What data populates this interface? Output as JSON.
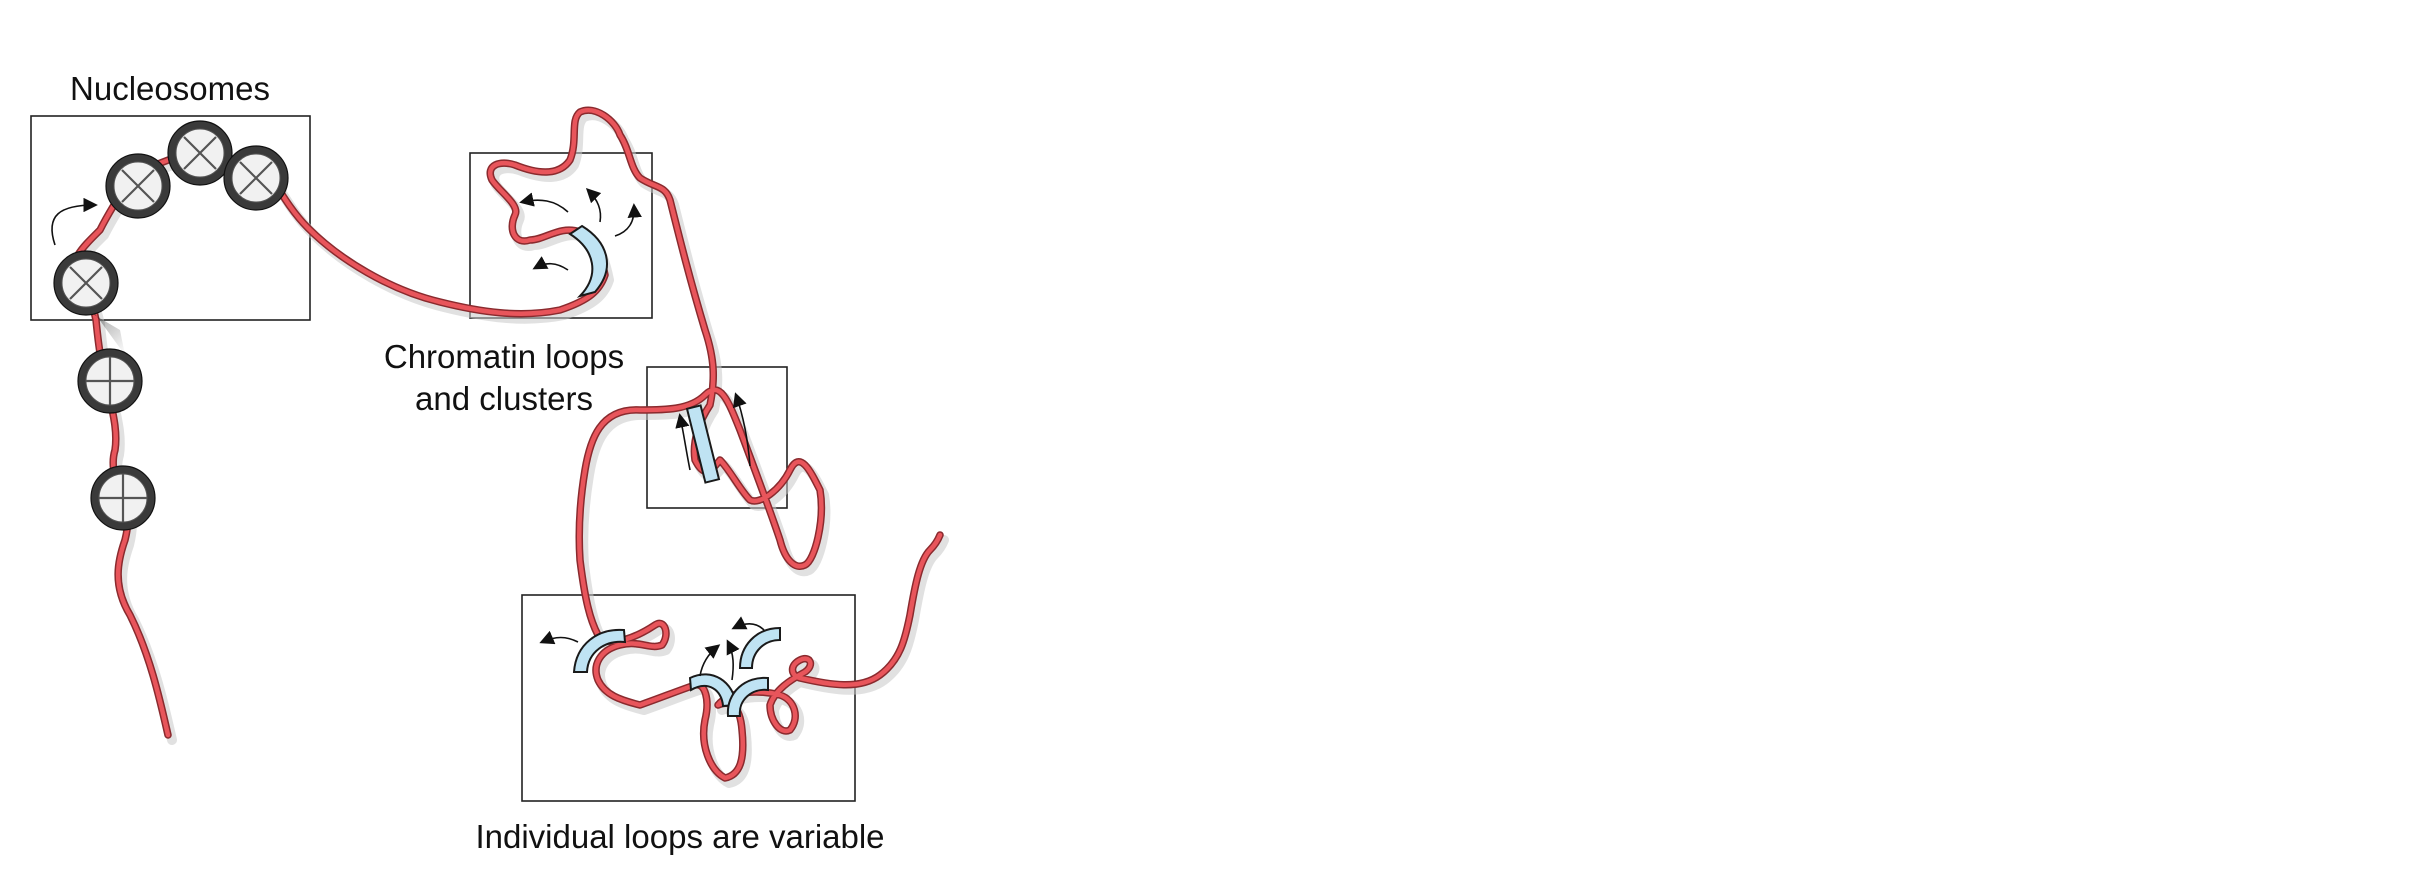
{
  "figure": {
    "labels": {
      "nucleosomes": "Nucleosomes",
      "loops_line1": "Chromatin loops",
      "loops_line2": "and clusters",
      "variable": "Individual loops are variable"
    },
    "colors": {
      "strand": "#e8555b",
      "strand_outline": "#8a2a2e",
      "clamp_fill": "#bfe3f3",
      "nucleosome_rim": "#3a3a3a"
    }
  }
}
